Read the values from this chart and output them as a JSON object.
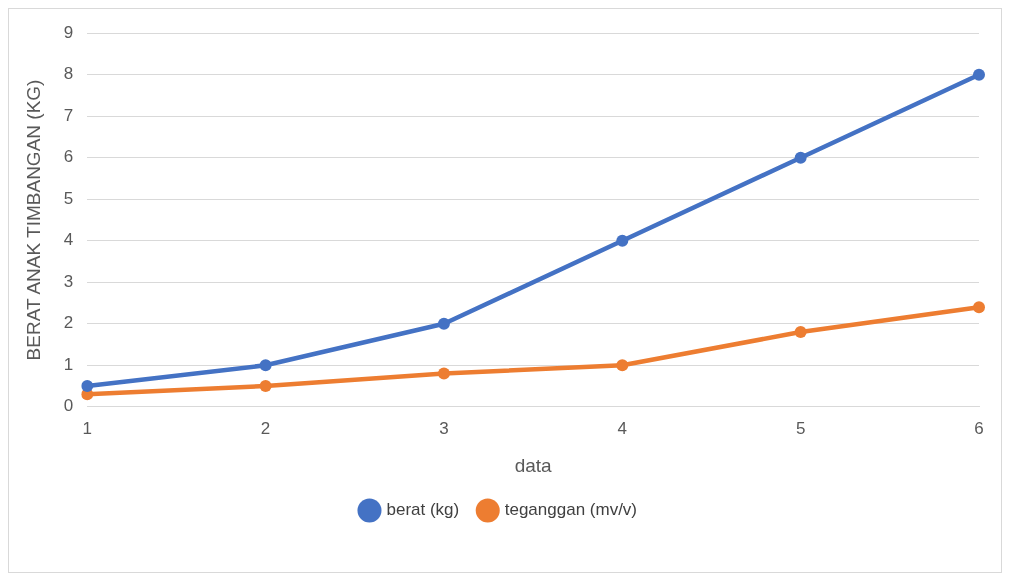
{
  "chart_data": {
    "type": "line",
    "xlabel": "data",
    "ylabel": "BERAT ANAK TIMBANGAN (KG)",
    "categories": [
      "1",
      "2",
      "3",
      "4",
      "5",
      "6"
    ],
    "series": [
      {
        "name": "berat (kg)",
        "color": "#4472c4",
        "values": [
          0.5,
          1,
          2,
          4,
          6,
          8
        ]
      },
      {
        "name": "teganggan (mv/v)",
        "color": "#ed7d31",
        "values": [
          0.3,
          0.5,
          0.8,
          1,
          1.8,
          2.4
        ]
      }
    ],
    "ylim": [
      0,
      9
    ],
    "yticks": [
      0,
      1,
      2,
      3,
      4,
      5,
      6,
      7,
      8,
      9
    ],
    "grid": "y",
    "legend": "bottom",
    "marker": "circle",
    "line_style": "solid"
  }
}
